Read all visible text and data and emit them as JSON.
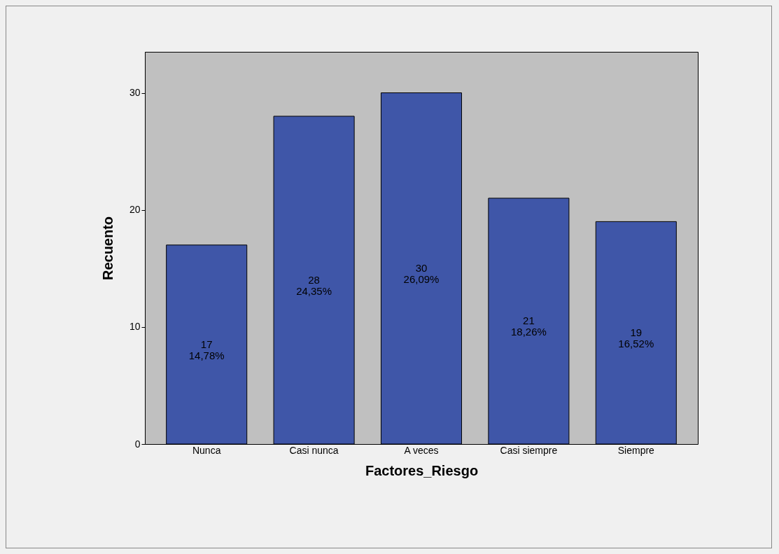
{
  "chart_data": {
    "type": "bar",
    "xlabel": "Factores_Riesgo",
    "ylabel": "Recuento",
    "categories": [
      "Nunca",
      "Casi nunca",
      "A veces",
      "Casi siempre",
      "Siempre"
    ],
    "values": [
      17,
      28,
      30,
      21,
      19
    ],
    "value_labels": [
      "17\n14,78%",
      "28\n24,35%",
      "30\n26,09%",
      "21\n18,26%",
      "19\n16,52%"
    ],
    "color": "#3f56a8",
    "ylim": [
      0,
      33.5
    ],
    "yticks": [
      0,
      10,
      20,
      30
    ],
    "grid": false
  }
}
